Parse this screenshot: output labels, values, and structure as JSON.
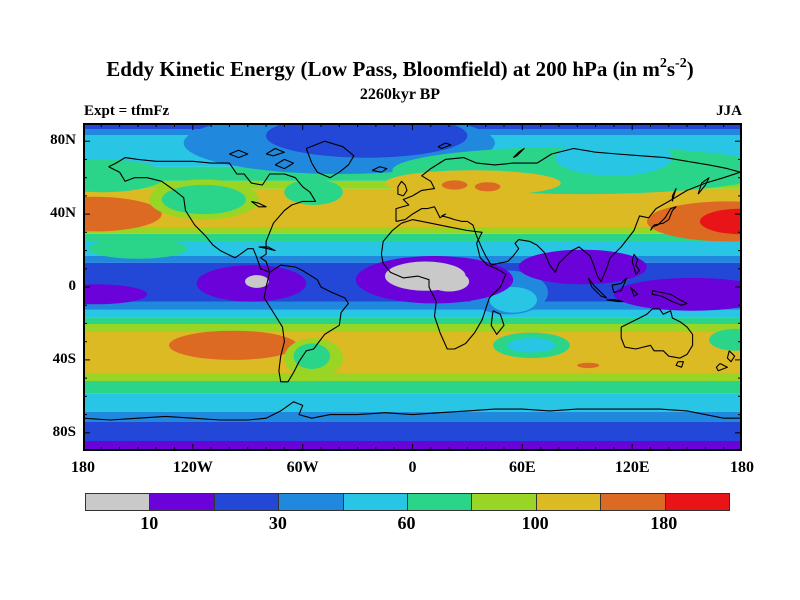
{
  "header": {
    "title": {
      "prefix": "Eddy Kinetic Energy (Low Pass, Bloomfield) at 200 hPa (in m",
      "sup1": "2",
      "mid": "s",
      "sup2": "-2",
      "suffix": ")"
    },
    "subtitle": "2260kyr BP",
    "left_label": "Expt = tfmFz",
    "right_label": "JJA"
  },
  "chart_data": {
    "type": "heatmap",
    "variant": "filled-contour-world-map",
    "projection": "equirectangular",
    "title": "Eddy Kinetic Energy (Low Pass, Bloomfield) at 200 hPa (in m2 s-2)",
    "subtitle": "2260kyr BP",
    "experiment": "tfmFz",
    "season": "JJA",
    "lon_range": [
      -180,
      180
    ],
    "lat_range": [
      -90,
      90
    ],
    "x_axis": {
      "tick_labels": [
        "180",
        "120W",
        "60W",
        "0",
        "60E",
        "120E",
        "180"
      ],
      "tick_lons": [
        -180,
        -120,
        -60,
        0,
        60,
        120,
        180
      ],
      "minor_step_deg": 10
    },
    "y_axis": {
      "tick_labels": [
        "80N",
        "40N",
        "0",
        "40S",
        "80S"
      ],
      "tick_lats": [
        80,
        40,
        0,
        -40,
        -80
      ],
      "minor_step_deg": 10
    },
    "colorbar": {
      "labels": [
        "10",
        "30",
        "60",
        "100",
        "180"
      ],
      "label_boundary_indices": [
        1,
        3,
        5,
        7,
        9
      ],
      "colors": [
        "#c9c9c9",
        "#6b02d9",
        "#2348d8",
        "#2189dd",
        "#29c5e5",
        "#2ad589",
        "#98d525",
        "#dcba24",
        "#dc6a22",
        "#e81417"
      ],
      "color_names": [
        "gray",
        "purple",
        "blue",
        "light-blue",
        "cyan",
        "green",
        "yellow-green",
        "gold",
        "orange",
        "red"
      ]
    },
    "zonal_bands": [
      [
        90,
        86.7,
        2
      ],
      [
        86.7,
        83.4,
        3
      ],
      [
        83.4,
        65.9,
        4
      ],
      [
        65.9,
        58.2,
        5
      ],
      [
        58.2,
        53.8,
        6
      ],
      [
        53.8,
        32.9,
        7
      ],
      [
        32.9,
        29.1,
        6
      ],
      [
        29.1,
        24.7,
        5
      ],
      [
        24.7,
        17,
        4
      ],
      [
        17,
        13.2,
        3
      ],
      [
        13.2,
        -8.2,
        2
      ],
      [
        -8.2,
        -12.6,
        3
      ],
      [
        -12.6,
        -16.5,
        4
      ],
      [
        -16.5,
        -20.3,
        5
      ],
      [
        -20.3,
        -24.7,
        6
      ],
      [
        -24.7,
        -47.2,
        7
      ],
      [
        -47.2,
        -51.6,
        6
      ],
      [
        -51.6,
        -58.7,
        5
      ],
      [
        -58.7,
        -68.6,
        4
      ],
      [
        -68.6,
        -74.1,
        3
      ],
      [
        -74.1,
        -84.5,
        2
      ],
      [
        -84.5,
        -90,
        1
      ]
    ],
    "blobs": [
      [
        -40,
        79,
        85,
        17,
        3,
        "arctic-lightblue-low"
      ],
      [
        -25,
        83,
        55,
        12,
        2,
        "arctic-blue-low"
      ],
      [
        -169,
        61,
        34,
        9,
        5,
        "bering-green"
      ],
      [
        93,
        64,
        104,
        13,
        5,
        "eurasia-green"
      ],
      [
        110,
        71,
        32,
        10,
        4,
        "siberia-cyan"
      ],
      [
        33,
        57,
        48,
        7,
        7,
        "europe-gold-high"
      ],
      [
        23,
        56,
        7,
        2.5,
        8,
        "europe-orange-spot-a"
      ],
      [
        41,
        55,
        7,
        2.5,
        8,
        "europe-orange-spot-b"
      ],
      [
        -174,
        40,
        37,
        9.5,
        8,
        "npacific-orange-max"
      ],
      [
        172,
        36,
        44,
        11,
        8,
        "japan-orange-max"
      ],
      [
        180,
        36,
        23,
        7,
        9,
        "japan-red-core"
      ],
      [
        -114,
        48,
        30,
        11,
        6,
        "wnamerica-yellowgreen"
      ],
      [
        -114,
        48,
        23,
        8,
        5,
        "wnamerica-green"
      ],
      [
        -54,
        52,
        16,
        7,
        5,
        "newfoundland-green"
      ],
      [
        -150,
        21,
        27,
        5.5,
        5,
        "cpacific-green"
      ],
      [
        52,
        -3,
        22,
        12,
        3,
        "windian-lightblue"
      ],
      [
        55,
        -7,
        13,
        7,
        4,
        "windian-cyan"
      ],
      [
        -88,
        2,
        30,
        10,
        1,
        "epacific-purple-min"
      ],
      [
        -173,
        -4,
        28,
        5.5,
        1,
        "wpacific-purple-min"
      ],
      [
        12,
        4,
        43,
        13,
        1,
        "africa-purple-min"
      ],
      [
        93,
        11,
        35,
        9.5,
        1,
        "sasia-purple-min"
      ],
      [
        153,
        -4,
        43,
        9,
        1,
        "maritime-purple-min"
      ],
      [
        7,
        6,
        22,
        8,
        0,
        "africa-gray-min-a"
      ],
      [
        20,
        3,
        11,
        5.5,
        0,
        "africa-gray-min-b"
      ],
      [
        -85,
        3,
        6.5,
        3.5,
        0,
        "epacific-gray-min"
      ],
      [
        -98,
        -32,
        35,
        8,
        8,
        "spacific-orange-max"
      ],
      [
        -54,
        -39,
        16,
        11,
        6,
        "samerica-yellowgreen"
      ],
      [
        -55,
        -38,
        10,
        7,
        5,
        "samerica-green"
      ],
      [
        65,
        -32,
        21,
        7,
        5,
        "sindian-green-ring"
      ],
      [
        65,
        -32,
        13,
        4,
        4,
        "sindian-cyan-low"
      ],
      [
        176,
        -29,
        14,
        6,
        5,
        "newzealand-green"
      ],
      [
        96,
        -43,
        6,
        1.5,
        8,
        "sindian-orange-dash"
      ]
    ],
    "coastlines": [
      [
        -166,
        66,
        -160,
        63,
        -157,
        58,
        -152,
        60,
        -145,
        60,
        -137,
        58,
        -130,
        53,
        -125,
        49,
        -124,
        42,
        -119,
        34,
        -113,
        28,
        -109,
        23,
        -105,
        20,
        -97,
        16,
        -94,
        18,
        -90,
        21,
        -87,
        21,
        -85,
        16,
        -83,
        10,
        -78,
        8,
        -80,
        14,
        -83,
        16,
        -80,
        18,
        -80,
        25,
        -76,
        35,
        -70,
        42,
        -66,
        45,
        -60,
        47,
        -53,
        47,
        -56,
        52,
        -60,
        55,
        -64,
        60,
        -70,
        62,
        -78,
        62,
        -82,
        56,
        -88,
        57,
        -92,
        62,
        -96,
        62,
        -100,
        68,
        -110,
        68,
        -120,
        69,
        -130,
        69,
        -140,
        69,
        -150,
        70,
        -157,
        71,
        -162,
        68,
        -166,
        66
      ],
      [
        -58,
        76,
        -48,
        80,
        -38,
        77,
        -32,
        72,
        -35,
        67,
        -40,
        63,
        -45,
        60,
        -52,
        63,
        -55,
        68,
        -58,
        76
      ],
      [
        -78,
        8,
        -72,
        12,
        -64,
        11,
        -60,
        9,
        -52,
        4,
        -50,
        0,
        -44,
        -3,
        -37,
        -6,
        -35,
        -9,
        -39,
        -14,
        -40,
        -21,
        -48,
        -26,
        -54,
        -34,
        -58,
        -35,
        -62,
        -41,
        -65,
        -47,
        -68,
        -52,
        -72,
        -52,
        -73,
        -46,
        -72,
        -38,
        -70,
        -30,
        -71,
        -22,
        -76,
        -14,
        -81,
        -6,
        -80,
        0,
        -78,
        8
      ],
      [
        -6,
        35,
        -11,
        31,
        -16,
        25,
        -17,
        18,
        -16,
        13,
        -12,
        8,
        -5,
        5,
        3,
        6,
        9,
        4,
        9,
        0,
        13,
        -8,
        12,
        -16,
        15,
        -25,
        19,
        -34,
        23,
        -34,
        29,
        -31,
        34,
        -25,
        38,
        -18,
        40,
        -12,
        42,
        -6,
        48,
        0,
        51,
        7,
        46,
        10,
        41,
        12,
        37,
        16,
        35,
        24,
        38,
        30,
        30,
        31,
        20,
        33,
        10,
        35,
        0,
        37,
        -6,
        35
      ],
      [
        44,
        -13,
        48,
        -15,
        50,
        -21,
        46,
        -26,
        43,
        -21,
        44,
        -13
      ],
      [
        -9,
        36,
        -9,
        43,
        -2,
        45,
        -5,
        48,
        0,
        50,
        5,
        53,
        12,
        54,
        10,
        58,
        5,
        61,
        10,
        65,
        18,
        70,
        28,
        71,
        35,
        68,
        45,
        67,
        55,
        68,
        68,
        68,
        76,
        73,
        88,
        76,
        100,
        74,
        112,
        73,
        125,
        72,
        138,
        71,
        150,
        69,
        162,
        67,
        172,
        65,
        179,
        63,
        170,
        60,
        160,
        57,
        150,
        53,
        140,
        47,
        133,
        43,
        129,
        38,
        124,
        39,
        121,
        31,
        114,
        22,
        108,
        16,
        106,
        10,
        103,
        3,
        101,
        6,
        99,
        12,
        97,
        17,
        91,
        22,
        87,
        20,
        84,
        17,
        80,
        13,
        78,
        8,
        75,
        12,
        72,
        19,
        68,
        23,
        64,
        25,
        58,
        26,
        56,
        24,
        58,
        21,
        55,
        17,
        52,
        14,
        47,
        13,
        43,
        12,
        40,
        17,
        38,
        21,
        35,
        28,
        33,
        34,
        30,
        36,
        27,
        36,
        23,
        37,
        20,
        38,
        16,
        39,
        18,
        40,
        15,
        38,
        12,
        44,
        8,
        43,
        5,
        43,
        0,
        40,
        -4,
        37,
        -9,
        36
      ],
      [
        -5,
        50,
        -3,
        53,
        -4,
        56,
        -6,
        58,
        -8,
        55,
        -8,
        51,
        -5,
        50
      ],
      [
        -22,
        64,
        -18,
        66,
        -14,
        65,
        -17,
        63,
        -22,
        64
      ],
      [
        130,
        31,
        132,
        34,
        137,
        35,
        140,
        37,
        142,
        42,
        144,
        44,
        141,
        43,
        138,
        38,
        134,
        34,
        131,
        33,
        130,
        31
      ],
      [
        109,
        1,
        114,
        2,
        117,
        5,
        114,
        -2,
        110,
        -3,
        109,
        1
      ],
      [
        96,
        5,
        99,
        1,
        103,
        -3,
        106,
        -6,
        103,
        -5,
        98,
        0,
        96,
        5
      ],
      [
        106,
        -7,
        112,
        -8,
        115,
        -8,
        111,
        -7,
        106,
        -7
      ],
      [
        121,
        18,
        123,
        15,
        122,
        12,
        124,
        9,
        122,
        7,
        121,
        11,
        120,
        14,
        121,
        18
      ],
      [
        119,
        0,
        121,
        -2,
        123,
        -4,
        121,
        -5,
        120,
        -2,
        119,
        0
      ],
      [
        131,
        -2,
        136,
        -3,
        141,
        -4,
        146,
        -7,
        150,
        -9,
        147,
        -10,
        142,
        -8,
        136,
        -5,
        131,
        -4,
        131,
        -2
      ],
      [
        114,
        -22,
        114,
        -28,
        116,
        -33,
        122,
        -34,
        130,
        -32,
        132,
        -35,
        137,
        -35,
        140,
        -38,
        146,
        -39,
        150,
        -37,
        153,
        -32,
        153,
        -26,
        150,
        -22,
        146,
        -19,
        142,
        -17,
        141,
        -13,
        137,
        -15,
        135,
        -12,
        131,
        -12,
        128,
        -15,
        124,
        -17,
        120,
        -19,
        114,
        -22
      ],
      [
        145,
        -41,
        148,
        -41,
        147,
        -44,
        144,
        -43,
        145,
        -41
      ],
      [
        173,
        -35,
        176,
        -38,
        174,
        -41,
        172,
        -39,
        173,
        -35
      ],
      [
        168,
        -42,
        172,
        -44,
        167,
        -46,
        166,
        -44,
        168,
        -42
      ],
      [
        -180,
        -72,
        -165,
        -73,
        -150,
        -72,
        -135,
        -71,
        -120,
        -72,
        -105,
        -73,
        -90,
        -73,
        -80,
        -72,
        -72,
        -68,
        -65,
        -63,
        -60,
        -65,
        -62,
        -70,
        -55,
        -72,
        -45,
        -70,
        -30,
        -70,
        -15,
        -69,
        0,
        -70,
        15,
        -69,
        30,
        -68,
        45,
        -67,
        60,
        -67,
        75,
        -68,
        90,
        -67,
        105,
        -67,
        120,
        -67,
        135,
        -67,
        150,
        -68,
        160,
        -70,
        170,
        -72,
        180,
        -72
      ],
      [
        -84,
        22,
        -79,
        21,
        -75,
        20,
        -79,
        22,
        -84,
        22
      ],
      [
        -75,
        67,
        -70,
        70,
        -65,
        68,
        -70,
        65,
        -75,
        67
      ],
      [
        -100,
        73,
        -95,
        75,
        -90,
        73,
        -95,
        71,
        -100,
        73
      ],
      [
        -80,
        73,
        -75,
        76,
        -70,
        74,
        -76,
        72,
        -80,
        73
      ],
      [
        55,
        71,
        58,
        74,
        61,
        76,
        57,
        72,
        55,
        71
      ],
      [
        14,
        77,
        18,
        79,
        21,
        78,
        16,
        76,
        14,
        77
      ],
      [
        156,
        51,
        160,
        56,
        162,
        60,
        158,
        57,
        156,
        51
      ],
      [
        -88,
        47,
        -84,
        46,
        -80,
        44,
        -84,
        44,
        -88,
        47
      ],
      [
        142,
        47,
        143,
        51,
        144,
        54,
        142,
        50,
        142,
        47
      ]
    ]
  }
}
